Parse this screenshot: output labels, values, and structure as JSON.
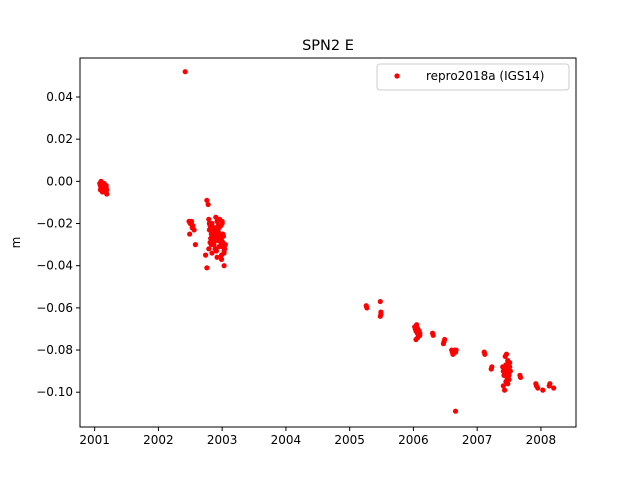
{
  "chart_data": {
    "type": "scatter",
    "title": "SPN2 E",
    "xlabel": "",
    "ylabel": "m",
    "xlim": [
      2000.77,
      2008.55
    ],
    "ylim": [
      -0.1165,
      0.0585
    ],
    "xticks": [
      2001,
      2002,
      2003,
      2004,
      2005,
      2006,
      2007,
      2008
    ],
    "xtick_labels": [
      "2001",
      "2002",
      "2003",
      "2004",
      "2005",
      "2006",
      "2007",
      "2008"
    ],
    "yticks": [
      0.04,
      0.02,
      0.0,
      -0.02,
      -0.04,
      -0.06,
      -0.08,
      -0.1
    ],
    "ytick_labels": [
      "0.04",
      "0.02",
      "0.00",
      "−0.02",
      "−0.04",
      "−0.06",
      "−0.08",
      "−0.10"
    ],
    "grid": false,
    "legend_position": "top-right",
    "series": [
      {
        "name": "repro2018a (IGS14)",
        "color": "#ff0000",
        "marker": "point",
        "x": [
          2001.08,
          2001.09,
          2001.1,
          2001.11,
          2001.12,
          2001.13,
          2001.14,
          2001.15,
          2001.16,
          2001.17,
          2001.18,
          2001.19,
          2001.1,
          2001.12,
          2001.14,
          2001.16,
          2001.18,
          2001.09,
          2001.11,
          2001.13,
          2001.15,
          2001.17,
          2001.19,
          2001.12,
          2001.15,
          2001.18,
          2002.42,
          2002.48,
          2002.5,
          2002.52,
          2002.54,
          2002.56,
          2002.58,
          2002.49,
          2002.53,
          2002.76,
          2002.78,
          2002.8,
          2002.82,
          2002.84,
          2002.86,
          2002.88,
          2002.9,
          2002.92,
          2002.94,
          2002.96,
          2002.98,
          2003.0,
          2003.02,
          2003.04,
          2002.79,
          2002.81,
          2002.83,
          2002.85,
          2002.87,
          2002.89,
          2002.91,
          2002.93,
          2002.95,
          2002.97,
          2002.99,
          2003.01,
          2003.03,
          2002.8,
          2002.84,
          2002.88,
          2002.92,
          2002.96,
          2003.0,
          2002.82,
          2002.86,
          2002.9,
          2002.94,
          2002.98,
          2003.02,
          2002.83,
          2002.87,
          2002.91,
          2002.95,
          2002.99,
          2003.03,
          2002.85,
          2002.89,
          2002.93,
          2002.97,
          2003.01,
          2002.81,
          2002.9,
          2002.95,
          2003.0,
          2002.74,
          2002.76,
          2002.79,
          2002.84,
          2002.92,
          2002.99,
          2003.03,
          2003.05,
          2005.26,
          2005.27,
          2005.48,
          2005.49,
          2005.48,
          2005.49,
          2006.02,
          2006.03,
          2006.04,
          2006.05,
          2006.06,
          2006.07,
          2006.08,
          2006.09,
          2006.1,
          2006.04,
          2006.07,
          2006.1,
          2006.05,
          2006.3,
          2006.31,
          2006.47,
          2006.48,
          2006.49,
          2006.6,
          2006.61,
          2006.62,
          2006.65,
          2006.66,
          2006.67,
          2007.11,
          2007.12,
          2007.22,
          2007.23,
          2007.4,
          2007.41,
          2007.42,
          2007.43,
          2007.44,
          2007.45,
          2007.46,
          2007.47,
          2007.48,
          2007.49,
          2007.5,
          2007.51,
          2007.52,
          2007.41,
          2007.43,
          2007.45,
          2007.47,
          2007.49,
          2007.51,
          2007.44,
          2007.46,
          2007.48,
          2007.5,
          2007.67,
          2007.68,
          2007.92,
          2007.93,
          2007.95,
          2008.03,
          2008.13,
          2008.14,
          2008.2,
          2006.66
        ],
        "y": [
          -0.001,
          -0.002,
          -0.003,
          -0.001,
          -0.002,
          -0.004,
          -0.003,
          -0.002,
          -0.005,
          -0.004,
          -0.003,
          -0.006,
          -0.0,
          -0.001,
          -0.002,
          -0.003,
          -0.005,
          -0.004,
          -0.003,
          -0.002,
          -0.001,
          -0.002,
          -0.004,
          -0.005,
          -0.003,
          -0.002,
          0.052,
          -0.019,
          -0.02,
          -0.019,
          -0.021,
          -0.023,
          -0.03,
          -0.025,
          -0.022,
          -0.009,
          -0.011,
          -0.02,
          -0.022,
          -0.024,
          -0.026,
          -0.028,
          -0.025,
          -0.023,
          -0.021,
          -0.027,
          -0.029,
          -0.031,
          -0.03,
          -0.032,
          -0.018,
          -0.021,
          -0.025,
          -0.028,
          -0.03,
          -0.032,
          -0.027,
          -0.024,
          -0.022,
          -0.026,
          -0.028,
          -0.029,
          -0.033,
          -0.023,
          -0.02,
          -0.022,
          -0.019,
          -0.018,
          -0.02,
          -0.027,
          -0.025,
          -0.023,
          -0.024,
          -0.021,
          -0.026,
          -0.03,
          -0.029,
          -0.033,
          -0.031,
          -0.035,
          -0.034,
          -0.024,
          -0.026,
          -0.028,
          -0.027,
          -0.025,
          -0.029,
          -0.017,
          -0.018,
          -0.019,
          -0.035,
          -0.041,
          -0.032,
          -0.034,
          -0.036,
          -0.037,
          -0.04,
          -0.03,
          -0.059,
          -0.06,
          -0.057,
          -0.063,
          -0.064,
          -0.062,
          -0.069,
          -0.07,
          -0.071,
          -0.069,
          -0.072,
          -0.07,
          -0.073,
          -0.071,
          -0.072,
          -0.075,
          -0.074,
          -0.073,
          -0.068,
          -0.072,
          -0.073,
          -0.077,
          -0.076,
          -0.075,
          -0.08,
          -0.081,
          -0.082,
          -0.08,
          -0.081,
          -0.08,
          -0.081,
          -0.082,
          -0.089,
          -0.088,
          -0.088,
          -0.09,
          -0.092,
          -0.089,
          -0.091,
          -0.087,
          -0.09,
          -0.094,
          -0.085,
          -0.089,
          -0.092,
          -0.086,
          -0.09,
          -0.097,
          -0.099,
          -0.095,
          -0.093,
          -0.091,
          -0.088,
          -0.083,
          -0.082,
          -0.096,
          -0.094,
          -0.092,
          -0.093,
          -0.096,
          -0.097,
          -0.098,
          -0.099,
          -0.097,
          -0.096,
          -0.098,
          -0.109
        ]
      }
    ]
  }
}
